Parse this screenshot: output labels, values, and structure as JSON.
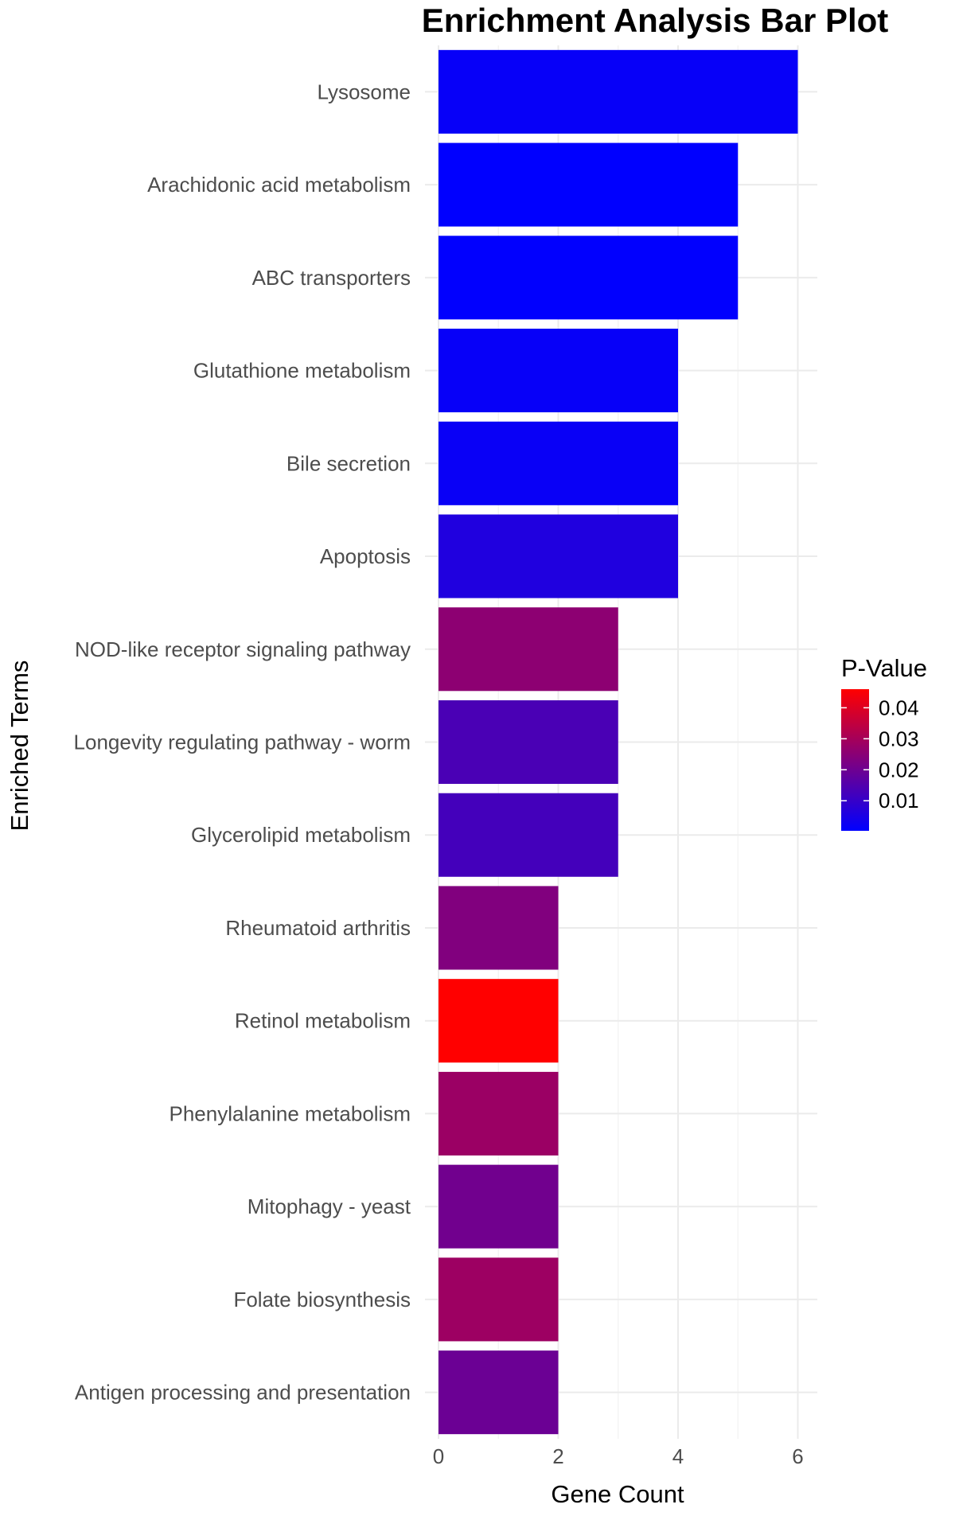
{
  "chart_data": {
    "type": "bar",
    "orientation": "horizontal",
    "title": "Enrichment Analysis Bar Plot",
    "xlabel": "Gene Count",
    "ylabel": "Enriched Terms",
    "xlim": [
      0,
      6.3
    ],
    "xticks": [
      "0",
      "2",
      "4",
      "6"
    ],
    "grid": true,
    "categories": [
      "Lysosome",
      "Arachidonic acid metabolism",
      "ABC transporters",
      "Glutathione metabolism",
      "Bile secretion",
      "Apoptosis",
      "NOD-like receptor signaling pathway",
      "Longevity regulating pathway - worm",
      "Glycerolipid metabolism",
      "Rheumatoid arthritis",
      "Retinol metabolism",
      "Phenylalanine metabolism",
      "Mitophagy - yeast",
      "Folate biosynthesis",
      "Antigen processing and presentation"
    ],
    "values": [
      6,
      5,
      5,
      4,
      4,
      4,
      3,
      3,
      3,
      2,
      2,
      2,
      2,
      2,
      2
    ],
    "p_values": [
      0.0015,
      0.0003,
      0.0005,
      0.0015,
      0.002,
      0.006,
      0.0255,
      0.0135,
      0.0125,
      0.0235,
      0.046,
      0.028,
      0.0205,
      0.0285,
      0.0195
    ],
    "legend": {
      "title": "P-Value",
      "position": "right",
      "labels": [
        "0.04",
        "0.03",
        "0.02",
        "0.01"
      ],
      "label_values": [
        0.04,
        0.03,
        0.02,
        0.01
      ],
      "range": [
        0.0003,
        0.046
      ],
      "low_color": "#0000ff",
      "high_color": "#ff0000"
    }
  }
}
